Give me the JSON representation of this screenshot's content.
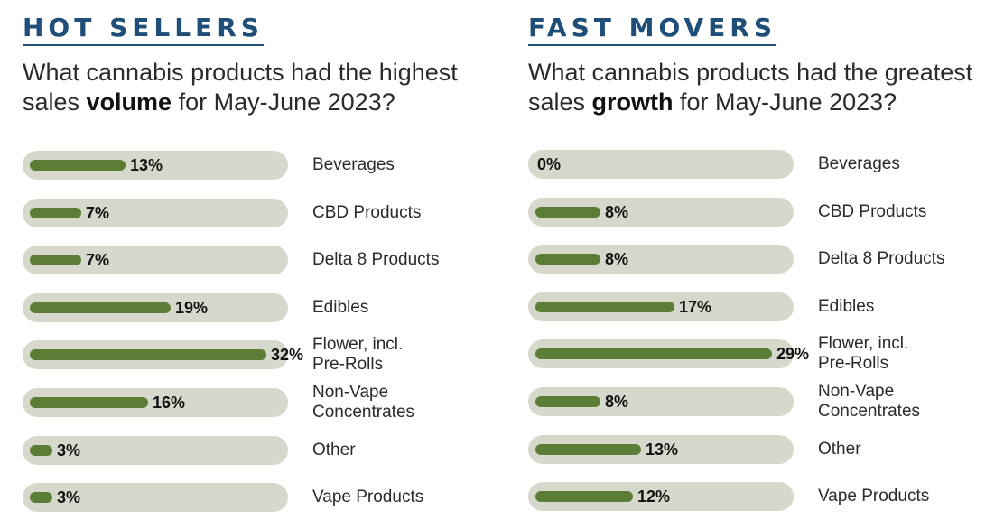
{
  "chart_data": [
    {
      "type": "bar",
      "orientation": "horizontal",
      "title": "HOT SELLERS",
      "subtitle": "What cannabis products had the highest sales volume for May-June 2023?",
      "subtitle_parts": [
        "What cannabis products had the highest sales ",
        "volume",
        " for May-June 2023?"
      ],
      "categories": [
        "Beverages",
        "CBD Products",
        "Delta 8 Products",
        "Edibles",
        "Flower, incl. Pre-Rolls",
        "Non-Vape Concentrates",
        "Other",
        "Vape Products"
      ],
      "values": [
        13,
        7,
        7,
        19,
        32,
        16,
        3,
        3
      ],
      "value_labels": [
        "13%",
        "7%",
        "7%",
        "19%",
        "32%",
        "16%",
        "3%",
        "3%"
      ],
      "xlim": [
        0,
        32
      ],
      "bar_color": "#5c7d36",
      "track_color": "#d6d8cb"
    },
    {
      "type": "bar",
      "orientation": "horizontal",
      "title": "FAST MOVERS",
      "subtitle": "What cannabis products had the greatest sales growth for May-June 2023?",
      "subtitle_parts": [
        "What cannabis products had the greatest sales ",
        "growth",
        " for May-June 2023?"
      ],
      "categories": [
        "Beverages",
        "CBD Products",
        "Delta 8 Products",
        "Edibles",
        "Flower, incl. Pre-Rolls",
        "Non-Vape Concentrates",
        "Other",
        "Vape Products"
      ],
      "values": [
        0,
        8,
        8,
        17,
        29,
        8,
        13,
        12
      ],
      "value_labels": [
        "0%",
        "8%",
        "8%",
        "17%",
        "29%",
        "8%",
        "13%",
        "12%"
      ],
      "xlim": [
        0,
        29
      ],
      "bar_color": "#5c7d36",
      "track_color": "#d6d8cb"
    }
  ],
  "colors": {
    "heading": "#1f4e79",
    "accent_bar": "#5c7d36",
    "track": "#d6d8cb"
  }
}
